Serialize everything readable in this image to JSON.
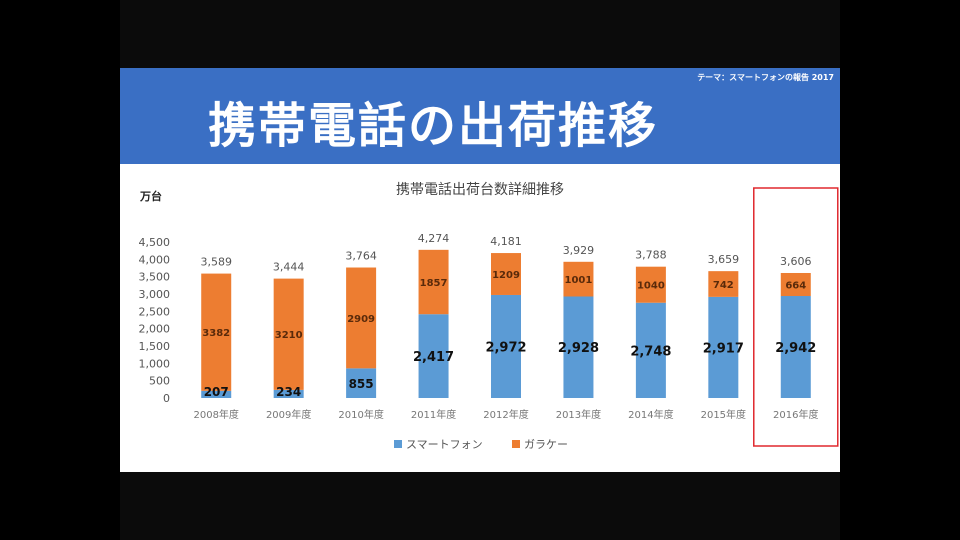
{
  "slide": {
    "title": "携帯電話の出荷推移",
    "theme_label": "テーマ：スマートフォンの報告 2017"
  },
  "colors": {
    "banner": "#3a6fc4",
    "smartphone": "#5b9bd5",
    "feature_phone": "#ed7d31",
    "highlight_box": "#e0282e"
  },
  "chart_data": {
    "type": "bar",
    "stacked": true,
    "title": "携帯電話出荷台数詳細推移",
    "ylabel": "万台",
    "ylim": [
      0,
      4500
    ],
    "yticks": [
      "0",
      "500",
      "1,000",
      "1,500",
      "2,000",
      "2,500",
      "3,000",
      "3,500",
      "4,000",
      "4,500"
    ],
    "categories": [
      "2008年度",
      "2009年度",
      "2010年度",
      "2011年度",
      "2012年度",
      "2013年度",
      "2014年度",
      "2015年度",
      "2016年度"
    ],
    "series": [
      {
        "name": "スマートフォン",
        "values": [
          207,
          234,
          855,
          2417,
          2972,
          2928,
          2748,
          2917,
          2942
        ],
        "labels": [
          "207",
          "234",
          "855",
          "2,417",
          "2,972",
          "2,928",
          "2,748",
          "2,917",
          "2,942"
        ]
      },
      {
        "name": "ガラケー",
        "values": [
          3382,
          3210,
          2909,
          1857,
          1209,
          1001,
          1040,
          742,
          664
        ],
        "labels": [
          "3382",
          "3210",
          "2909",
          "1857",
          "1209",
          "1001",
          "1040",
          "742",
          "664"
        ]
      }
    ],
    "totals": [
      "3,589",
      "3,444",
      "3,764",
      "4,274",
      "4,181",
      "3,929",
      "3,788",
      "3,659",
      "3,606"
    ],
    "legend_position": "bottom",
    "grid": false,
    "highlighted_category": "2016年度"
  }
}
